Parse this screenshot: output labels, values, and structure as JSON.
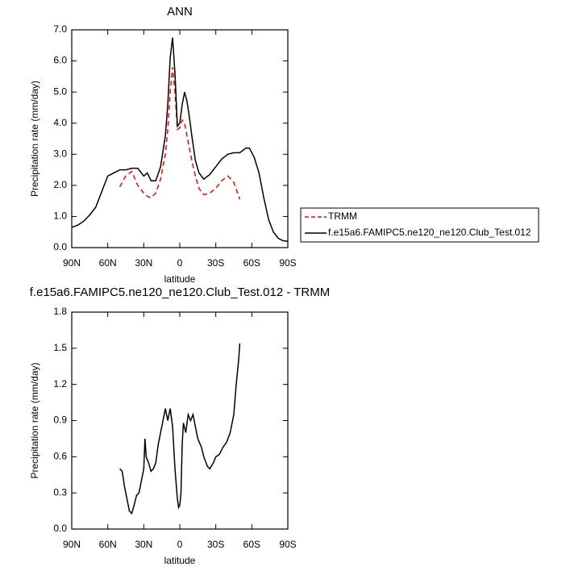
{
  "chart_data": [
    {
      "type": "line",
      "title": "ANN",
      "xlabel": "latitude",
      "ylabel": "Precipitation rate (mm/day)",
      "x": [
        90,
        85,
        80,
        75,
        70,
        65,
        60,
        55,
        50,
        45,
        40,
        35,
        30,
        27,
        24,
        20,
        16,
        12,
        10,
        8,
        6,
        4,
        2,
        0,
        -2,
        -4,
        -6,
        -8,
        -10,
        -13,
        -16,
        -20,
        -25,
        -30,
        -35,
        -40,
        -45,
        -50,
        -55,
        -58,
        -62,
        -66,
        -70,
        -74,
        -78,
        -82,
        -86,
        -90
      ],
      "series": [
        {
          "name": "TRMM",
          "color": "#ff0000",
          "line_style": "dashed",
          "values": [
            null,
            null,
            null,
            null,
            null,
            null,
            null,
            null,
            1.95,
            2.3,
            2.45,
            2.0,
            1.75,
            1.65,
            1.6,
            1.75,
            2.2,
            3.0,
            3.8,
            5.0,
            5.8,
            5.0,
            3.8,
            3.85,
            4.1,
            4.0,
            3.6,
            3.2,
            2.8,
            2.3,
            1.9,
            1.7,
            1.75,
            1.9,
            2.15,
            2.3,
            2.1,
            1.55,
            null,
            null,
            null,
            null,
            null,
            null,
            null,
            null,
            null,
            null
          ]
        },
        {
          "name": "f.e15a6.FAMIPC5.ne120_ne120.Club_Test.012",
          "color": "#000000",
          "line_style": "solid",
          "values": [
            0.65,
            0.72,
            0.85,
            1.05,
            1.3,
            1.8,
            2.3,
            2.4,
            2.5,
            2.5,
            2.55,
            2.55,
            2.3,
            2.4,
            2.15,
            2.15,
            2.6,
            3.6,
            4.6,
            6.1,
            6.75,
            5.6,
            3.9,
            4.0,
            4.6,
            5.0,
            4.7,
            4.2,
            3.6,
            2.8,
            2.4,
            2.2,
            2.35,
            2.6,
            2.85,
            3.0,
            3.05,
            3.05,
            3.2,
            3.2,
            2.9,
            2.4,
            1.6,
            0.9,
            0.5,
            0.3,
            0.22,
            0.2
          ]
        }
      ],
      "xlim": [
        90,
        -90
      ],
      "xticks": [
        {
          "value": 90,
          "label": "90N"
        },
        {
          "value": 60,
          "label": "60N"
        },
        {
          "value": 30,
          "label": "30N"
        },
        0,
        {
          "value": -30,
          "label": "30S"
        },
        {
          "value": -60,
          "label": "60S"
        },
        {
          "value": -90,
          "label": "90S"
        }
      ],
      "ylim": [
        0,
        7
      ],
      "yticks": [
        {
          "value": 0,
          "label": "0.0"
        },
        {
          "value": 1,
          "label": "1.0"
        },
        {
          "value": 2,
          "label": "2.0"
        },
        {
          "value": 3,
          "label": "3.0"
        },
        {
          "value": 4,
          "label": "4.0"
        },
        {
          "value": 5,
          "label": "5.0"
        },
        {
          "value": 6,
          "label": "6.0"
        },
        {
          "value": 7,
          "label": "7.0"
        }
      ],
      "legend": "right"
    },
    {
      "type": "line",
      "title": "f.e15a6.FAMIPC5.ne120_ne120.Club_Test.012 - TRMM",
      "xlabel": "latitude",
      "ylabel": "Precipitation rate (mm/day)",
      "x": [
        50,
        48,
        46,
        44,
        42,
        40,
        38,
        36,
        34,
        32,
        30,
        29,
        28,
        26,
        24,
        22,
        20,
        18,
        16,
        14,
        12,
        10,
        8,
        6,
        4,
        2,
        1,
        0,
        -1,
        -2,
        -3,
        -5,
        -7,
        -9,
        -11,
        -13,
        -15,
        -18,
        -20,
        -23,
        -25,
        -28,
        -30,
        -33,
        -36,
        -39,
        -42,
        -45,
        -47,
        -49,
        -50
      ],
      "series": [
        {
          "color": "#000000",
          "line_style": "solid",
          "values": [
            0.5,
            0.48,
            0.35,
            0.25,
            0.15,
            0.13,
            0.2,
            0.28,
            0.3,
            0.4,
            0.5,
            0.75,
            0.6,
            0.55,
            0.48,
            0.5,
            0.55,
            0.7,
            0.8,
            0.9,
            1.0,
            0.9,
            1.0,
            0.85,
            0.5,
            0.25,
            0.18,
            0.2,
            0.3,
            0.7,
            0.88,
            0.8,
            0.95,
            0.9,
            0.95,
            0.85,
            0.75,
            0.68,
            0.6,
            0.52,
            0.5,
            0.55,
            0.6,
            0.62,
            0.68,
            0.72,
            0.8,
            0.95,
            1.2,
            1.4,
            1.54
          ]
        }
      ],
      "xlim": [
        90,
        -90
      ],
      "xticks": [
        {
          "value": 90,
          "label": "90N"
        },
        {
          "value": 60,
          "label": "60N"
        },
        {
          "value": 30,
          "label": "30N"
        },
        0,
        {
          "value": -30,
          "label": "30S"
        },
        {
          "value": -60,
          "label": "60S"
        },
        {
          "value": -90,
          "label": "90S"
        }
      ],
      "ylim": [
        0,
        1.8
      ],
      "yticks": [
        {
          "value": 0,
          "label": "0.0"
        },
        0.3,
        0.6,
        0.9,
        1.2,
        1.5,
        1.8
      ]
    }
  ]
}
